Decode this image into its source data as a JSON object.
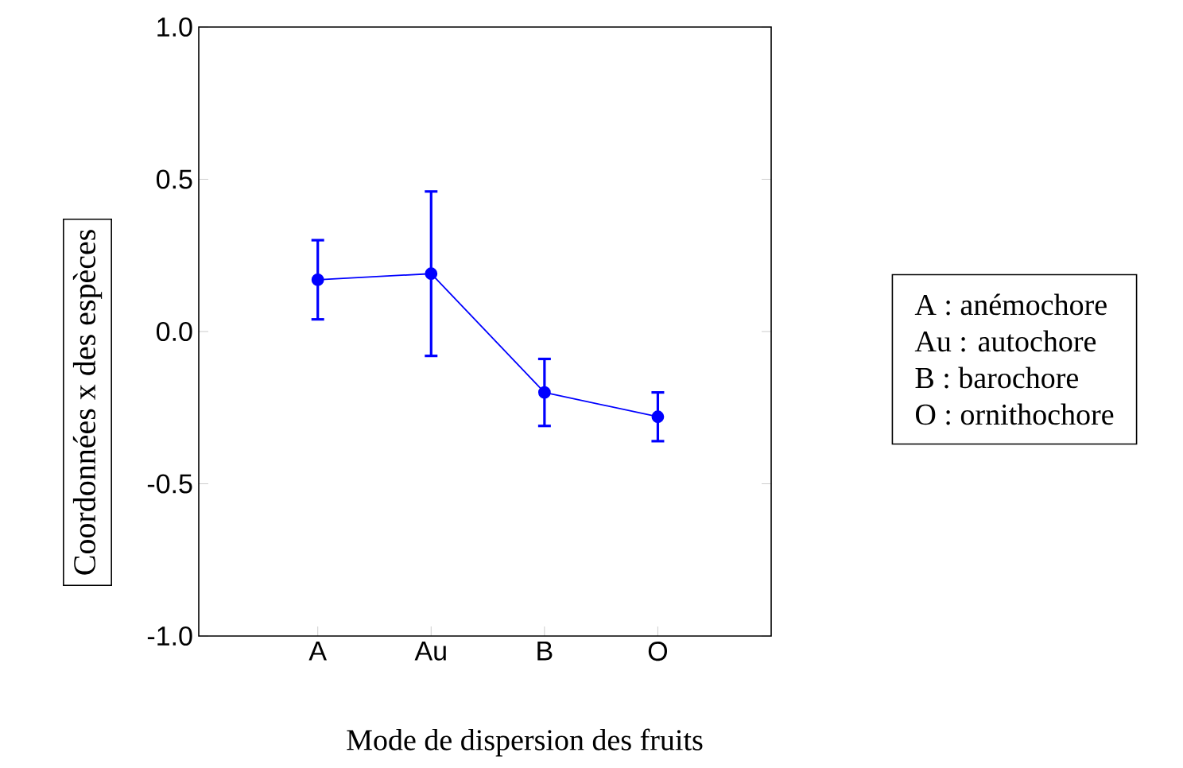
{
  "chart_data": {
    "type": "line",
    "xlabel": "Mode de dispersion des fruits",
    "ylabel": "Coordonnées x des espèces",
    "categories": [
      "A",
      "Au",
      "B",
      "O"
    ],
    "values": [
      0.17,
      0.19,
      -0.2,
      -0.28
    ],
    "errors": [
      0.13,
      0.27,
      0.11,
      0.08
    ],
    "color": "#0000ff",
    "marker": "circle",
    "line_style": "solid",
    "ylim": [
      -1,
      1
    ],
    "yticks": [
      {
        "value": -1,
        "label": "-1.0"
      },
      {
        "value": -0.5,
        "label": "-0.5"
      },
      {
        "value": 0,
        "label": "0.0"
      },
      {
        "value": 0.5,
        "label": "0.5"
      },
      {
        "value": 1,
        "label": "1.0"
      }
    ],
    "annotations": [
      "A : anémochore",
      "Au : autochore",
      "B : barochore",
      "O : ornithochore"
    ]
  }
}
